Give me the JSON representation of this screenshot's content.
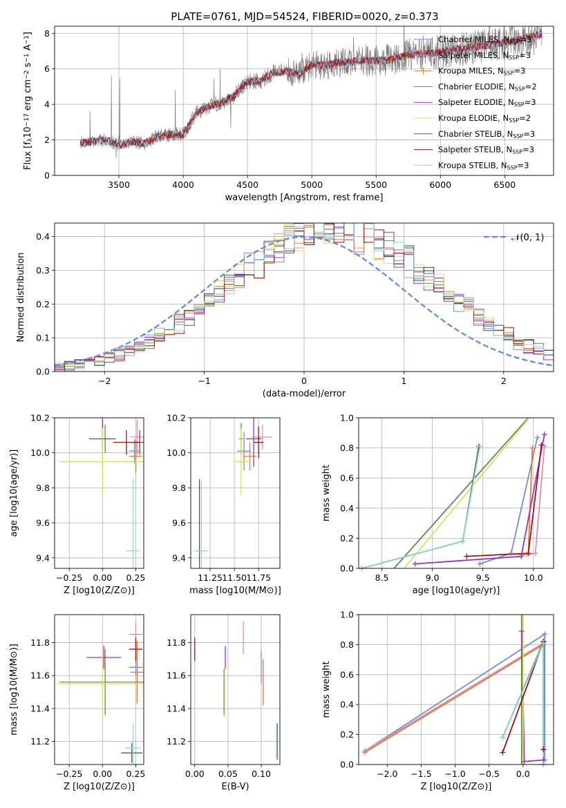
{
  "title": "PLATE=0761, MJD=54524, FIBERID=0020, z=0.373",
  "colors": {
    "c1": "#6a8fd6",
    "c2": "#e07b39",
    "c3": "#5a8a5a",
    "c4": "#9933bb",
    "c5": "#d98fb0",
    "c6": "#d9e060",
    "c7": "#555555",
    "c8": "#a01010",
    "c9": "#8fd3de",
    "data": "#7f7f7f",
    "normal": "#6a8fd6"
  },
  "chart_data": [
    {
      "id": "spectrum",
      "type": "line",
      "title": "PLATE=0761, MJD=54524, FIBERID=0020, z=0.373",
      "xlabel": "wavelength [Angstrom, rest frame]",
      "ylabel_parts": [
        "Flux [f",
        "λ",
        "10",
        "−17",
        " erg cm",
        "−2",
        " s",
        "−1",
        " A",
        "−1",
        "]"
      ],
      "xlim": [
        3000,
        6880
      ],
      "ylim": [
        0,
        8.4
      ],
      "xticks": [
        3500,
        4000,
        4500,
        5000,
        5500,
        6000,
        6500
      ],
      "yticks": [
        0,
        2,
        4,
        6,
        8
      ],
      "continuum": {
        "x": [
          3200,
          3300,
          3400,
          3500,
          3600,
          3700,
          3800,
          3900,
          4000,
          4100,
          4200,
          4300,
          4400,
          4500,
          4600,
          4700,
          4800,
          4900,
          5000,
          5100,
          5200,
          5300,
          5400,
          5500,
          5600,
          5700,
          5800,
          5900,
          6000,
          6100,
          6200,
          6300,
          6400,
          6500,
          6600,
          6700,
          6780
        ],
        "y": [
          1.85,
          1.9,
          2.0,
          1.7,
          1.9,
          1.8,
          2.2,
          2.3,
          2.3,
          3.5,
          3.9,
          4.1,
          4.5,
          5.3,
          5.3,
          5.8,
          5.85,
          5.7,
          6.25,
          6.2,
          6.35,
          6.4,
          6.5,
          6.45,
          6.5,
          6.7,
          6.85,
          6.85,
          6.95,
          7.1,
          7.15,
          7.3,
          7.35,
          7.5,
          7.6,
          7.8,
          7.95
        ]
      },
      "legend_position": "upper-right",
      "legend": [
        {
          "name": "Chabrier MILES, N",
          "sub": "SSP",
          "suffix": "=3",
          "color": "c1",
          "marker": true
        },
        {
          "name": "Salpeter MILES, N",
          "sub": "SSP",
          "suffix": "=3",
          "color": "c5",
          "marker": true
        },
        {
          "name": "Kroupa MILES, N",
          "sub": "SSP",
          "suffix": "=3",
          "color": "c2",
          "marker": true
        },
        {
          "name": "Chabrier ELODIE, N",
          "sub": "SSP",
          "suffix": "=2",
          "color": "c3",
          "marker": false
        },
        {
          "name": "Salpeter ELODIE, N",
          "sub": "SSP",
          "suffix": "=3",
          "color": "c4",
          "marker": false
        },
        {
          "name": "Kroupa ELODIE, N",
          "sub": "SSP",
          "suffix": "=2",
          "color": "c6",
          "marker": false
        },
        {
          "name": "Chabrier STELIB, N",
          "sub": "SSP",
          "suffix": "=3",
          "color": "c7",
          "marker": false
        },
        {
          "name": "Salpeter STELIB, N",
          "sub": "SSP",
          "suffix": "=3",
          "color": "c8",
          "marker": false
        },
        {
          "name": "Kroupa STELIB, N",
          "sub": "SSP",
          "suffix": "=3",
          "color": "c9",
          "marker": false
        }
      ]
    },
    {
      "id": "residuals",
      "type": "histogram",
      "xlabel": "(data-model)/error",
      "ylabel": "Normed distribution",
      "xlim": [
        -2.5,
        2.5
      ],
      "ylim": [
        0,
        0.44
      ],
      "xticks": [
        -2,
        -1,
        0,
        1,
        2
      ],
      "xtick_labels": [
        "−2",
        "−1",
        "0",
        "1",
        "2"
      ],
      "yticks": [
        0.0,
        0.1,
        0.2,
        0.3,
        0.4
      ],
      "ytick_labels": [
        "0.0",
        "0.1",
        "0.2",
        "0.3",
        "0.4"
      ],
      "bin_width": 0.1,
      "series_colors": [
        "c1",
        "c5",
        "c2",
        "c3",
        "c4",
        "c6",
        "c7",
        "c8",
        "c9"
      ],
      "normal_label": "𝒩(0, 1)",
      "legend_position": "upper-right"
    },
    {
      "id": "age-vs-z",
      "type": "errorbar",
      "xlabel": "Z [log10(Z/Z⊙)]",
      "ylabel": "age [log10(age/yr)]",
      "xlim": [
        -0.36,
        0.31
      ],
      "ylim": [
        9.34,
        10.2
      ],
      "xticks": [
        -0.25,
        0.0,
        0.25
      ],
      "xtick_labels": [
        "−0.25",
        "0.00",
        "0.25"
      ],
      "yticks": [
        9.4,
        9.6,
        9.8,
        10.0,
        10.2
      ],
      "ytick_labels": [
        "9.4",
        "9.6",
        "9.8",
        "10.0",
        "10.2"
      ],
      "points": [
        {
          "x": 0.24,
          "xerr": 0.04,
          "y": 10.01,
          "yerr": 0.07,
          "color": "c1"
        },
        {
          "x": 0.26,
          "xerr": 0.05,
          "y": 10.09,
          "yerr": 0.1,
          "color": "c5"
        },
        {
          "x": 0.25,
          "xerr": 0.05,
          "y": 9.98,
          "yerr": 0.09,
          "color": "c2"
        },
        {
          "x": 0.02,
          "xerr": 0.04,
          "y": 10.08,
          "yerr": 0.08,
          "color": "c3"
        },
        {
          "x": 0.0,
          "xerr": 0.1,
          "y": 10.08,
          "yerr": 0.17,
          "color": "c4"
        },
        {
          "x": 0.0,
          "xerr": 0.32,
          "y": 9.95,
          "yerr": 0.19,
          "color": "c6"
        },
        {
          "x": 0.28,
          "xerr": 0.04,
          "y": 10.06,
          "yerr": 0.07,
          "color": "c7"
        },
        {
          "x": 0.18,
          "xerr": 0.1,
          "y": 10.06,
          "yerr": 0.07,
          "color": "c8"
        },
        {
          "x": 0.23,
          "xerr": 0.05,
          "y": 9.44,
          "yerr": 0.41,
          "color": "c9"
        }
      ]
    },
    {
      "id": "age-vs-mass",
      "type": "errorbar",
      "xlabel": "mass [log10(M/M⊙)]",
      "ylabel": "",
      "xlim": [
        11.05,
        11.97
      ],
      "ylim": [
        9.34,
        10.2
      ],
      "xticks": [
        11.25,
        11.5,
        11.75
      ],
      "xtick_labels": [
        "11.25",
        "11.50",
        "11.75"
      ],
      "yticks": [
        9.4,
        9.6,
        9.8,
        10.0,
        10.2
      ],
      "ytick_labels": [
        "9.4",
        "9.6",
        "9.8",
        "10.0",
        "10.2"
      ],
      "points": [
        {
          "x": 11.6,
          "xerr": 0.07,
          "y": 10.01,
          "yerr": 0.11,
          "color": "c1"
        },
        {
          "x": 11.79,
          "xerr": 0.1,
          "y": 10.09,
          "yerr": 0.07,
          "color": "c5"
        },
        {
          "x": 11.66,
          "xerr": 0.07,
          "y": 9.98,
          "yerr": 0.08,
          "color": "c2"
        },
        {
          "x": 11.57,
          "xerr": 0.02,
          "y": 10.08,
          "yerr": 0.09,
          "color": "c3"
        },
        {
          "x": 11.7,
          "xerr": 0.08,
          "y": 10.08,
          "yerr": 0.16,
          "color": "c4"
        },
        {
          "x": 11.57,
          "xerr": 0.08,
          "y": 9.95,
          "yerr": 0.19,
          "color": "c6"
        },
        {
          "x": 11.14,
          "xerr": 0.03,
          "y": 9.44,
          "yerr": 0.41,
          "color": "c7"
        },
        {
          "x": 11.75,
          "xerr": 0.05,
          "y": 10.06,
          "yerr": 0.09,
          "color": "c8"
        },
        {
          "x": 11.16,
          "xerr": 0.07,
          "y": 9.44,
          "yerr": 0.4,
          "color": "c9"
        }
      ]
    },
    {
      "id": "mass-weight-vs-age",
      "type": "line",
      "xlabel": "age [log10(age/yr)]",
      "ylabel": "mass weight",
      "xlim": [
        8.27,
        10.2
      ],
      "ylim": [
        0,
        1
      ],
      "xticks": [
        8.5,
        9.0,
        9.5,
        10.0
      ],
      "xtick_labels": [
        "8.5",
        "9.0",
        "9.5",
        "10.0"
      ],
      "yticks": [
        0.0,
        0.2,
        0.4,
        0.6,
        0.8,
        1.0
      ],
      "ytick_labels": [
        "0.0",
        "0.2",
        "0.4",
        "0.6",
        "0.8",
        "1.0"
      ],
      "series": [
        {
          "color": "c1",
          "marker": true,
          "points": [
            [
              9.47,
              0.03
            ],
            [
              9.78,
              0.1
            ],
            [
              10.04,
              0.87
            ]
          ]
        },
        {
          "color": "c5",
          "marker": true,
          "points": [
            [
              9.93,
              0.09
            ],
            [
              10.02,
              0.1
            ],
            [
              10.11,
              0.81
            ]
          ]
        },
        {
          "color": "c2",
          "marker": true,
          "points": [
            [
              9.88,
              0.09
            ],
            [
              9.95,
              0.1
            ],
            [
              9.99,
              0.8
            ]
          ]
        },
        {
          "color": "c3",
          "marker": false,
          "points": [
            [
              8.62,
              0.0
            ],
            [
              9.95,
              1.0
            ]
          ]
        },
        {
          "color": "c4",
          "marker": true,
          "points": [
            [
              8.83,
              0.03
            ],
            [
              9.88,
              0.08
            ],
            [
              10.11,
              0.89
            ]
          ]
        },
        {
          "color": "c6",
          "marker": false,
          "points": [
            [
              8.72,
              0.0
            ],
            [
              9.96,
              1.0
            ]
          ]
        },
        {
          "color": "c7",
          "marker": true,
          "points": [
            [
              8.3,
              0.0
            ],
            [
              9.3,
              0.18
            ],
            [
              9.46,
              0.81
            ]
          ]
        },
        {
          "color": "c8",
          "marker": true,
          "points": [
            [
              9.34,
              0.08
            ],
            [
              9.95,
              0.1
            ],
            [
              10.08,
              0.82
            ]
          ]
        },
        {
          "color": "c9",
          "marker": true,
          "points": [
            [
              8.3,
              0.0
            ],
            [
              9.3,
              0.18
            ],
            [
              9.47,
              0.81
            ]
          ]
        }
      ]
    },
    {
      "id": "mass-vs-z",
      "type": "errorbar",
      "xlabel": "Z [log10(Z/Z⊙)]",
      "ylabel": "mass [log10(M/M⊙)]",
      "xlim": [
        -0.36,
        0.31
      ],
      "ylim": [
        11.06,
        11.97
      ],
      "xticks": [
        -0.25,
        0.0,
        0.25
      ],
      "xtick_labels": [
        "−0.25",
        "0.00",
        "0.25"
      ],
      "yticks": [
        11.2,
        11.4,
        11.6,
        11.8
      ],
      "ytick_labels": [
        "11.2",
        "11.4",
        "11.6",
        "11.8"
      ],
      "points": [
        {
          "x": 0.25,
          "xerr": 0.05,
          "y": 11.65,
          "yerr": 0.05,
          "color": "c1"
        },
        {
          "x": 0.25,
          "xerr": 0.05,
          "y": 11.85,
          "yerr": 0.07,
          "color": "c5"
        },
        {
          "x": 0.26,
          "xerr": 0.05,
          "y": 11.62,
          "yerr": 0.19,
          "color": "c2"
        },
        {
          "x": 0.02,
          "xerr": 0.34,
          "y": 11.56,
          "yerr": 0.2,
          "color": "c3"
        },
        {
          "x": 0.01,
          "xerr": 0.13,
          "y": 11.71,
          "yerr": 0.07,
          "color": "c4"
        },
        {
          "x": 0.0,
          "xerr": 0.34,
          "y": 11.55,
          "yerr": 0.2,
          "color": "c6"
        },
        {
          "x": 0.22,
          "xerr": 0.08,
          "y": 11.13,
          "yerr": 0.06,
          "color": "c7"
        },
        {
          "x": 0.25,
          "xerr": 0.05,
          "y": 11.76,
          "yerr": 0.07,
          "color": "c8"
        },
        {
          "x": 0.23,
          "xerr": 0.06,
          "y": 11.16,
          "yerr": 0.15,
          "color": "c9"
        }
      ]
    },
    {
      "id": "mass-vs-ebv",
      "type": "errorbar",
      "xlabel": "E(B-V)",
      "ylabel": "",
      "xlim": [
        -0.006,
        0.128
      ],
      "ylim": [
        11.06,
        11.97
      ],
      "xticks": [
        0.0,
        0.05,
        0.1
      ],
      "xtick_labels": [
        "0.00",
        "0.05",
        "0.10"
      ],
      "yticks": [
        11.2,
        11.4,
        11.6,
        11.8
      ],
      "ytick_labels": [
        "11.2",
        "11.4",
        "11.6",
        "11.8"
      ],
      "points": [
        {
          "x": 0.1,
          "xerr": 0.0,
          "y": 11.65,
          "yerr": 0.1,
          "color": "c1"
        },
        {
          "x": 0.073,
          "xerr": 0.0,
          "y": 11.83,
          "yerr": 0.1,
          "color": "c5"
        },
        {
          "x": 0.103,
          "xerr": 0.0,
          "y": 11.56,
          "yerr": 0.14,
          "color": "c2"
        },
        {
          "x": 0.044,
          "xerr": 0.0,
          "y": 11.5,
          "yerr": 0.14,
          "color": "c3"
        },
        {
          "x": 0.046,
          "xerr": 0.0,
          "y": 11.71,
          "yerr": 0.07,
          "color": "c4"
        },
        {
          "x": 0.045,
          "xerr": 0.0,
          "y": 11.5,
          "yerr": 0.15,
          "color": "c6"
        },
        {
          "x": 0.124,
          "xerr": 0.0,
          "y": 11.2,
          "yerr": 0.11,
          "color": "c7"
        },
        {
          "x": 0.0,
          "xerr": 0.0,
          "y": 11.76,
          "yerr": 0.07,
          "color": "c8"
        },
        {
          "x": 0.123,
          "xerr": 0.0,
          "y": 11.2,
          "yerr": 0.11,
          "color": "c9"
        }
      ]
    },
    {
      "id": "mass-weight-vs-z",
      "type": "line",
      "xlabel": "Z [log10(Z/Z⊙)]",
      "ylabel": "mass weight",
      "xlim": [
        -2.42,
        0.45
      ],
      "ylim": [
        0,
        1
      ],
      "xticks": [
        -2.0,
        -1.5,
        -1.0,
        -0.5,
        0.0
      ],
      "xtick_labels": [
        "−2.0",
        "−1.5",
        "−1.0",
        "−0.5",
        "0.0"
      ],
      "yticks": [
        0.0,
        0.2,
        0.4,
        0.6,
        0.8,
        1.0
      ],
      "ytick_labels": [
        "0.0",
        "0.2",
        "0.4",
        "0.6",
        "0.8",
        "1.0"
      ],
      "series": [
        {
          "color": "c1",
          "marker": true,
          "points": [
            [
              -2.33,
              0.09
            ],
            [
              0.32,
              0.87
            ],
            [
              0.32,
              0.03
            ]
          ]
        },
        {
          "color": "c5",
          "marker": true,
          "points": [
            [
              -2.33,
              0.09
            ],
            [
              0.3,
              0.81
            ],
            [
              0.31,
              0.1
            ]
          ]
        },
        {
          "color": "c2",
          "marker": true,
          "points": [
            [
              -2.33,
              0.08
            ],
            [
              0.3,
              0.8
            ],
            [
              0.3,
              0.1
            ]
          ]
        },
        {
          "color": "c3",
          "marker": false,
          "points": [
            [
              -0.02,
              0.0
            ],
            [
              -0.02,
              1.0
            ]
          ]
        },
        {
          "color": "c4",
          "marker": true,
          "points": [
            [
              -0.02,
              0.89
            ],
            [
              0.02,
              0.02
            ],
            [
              0.3,
              0.03
            ]
          ]
        },
        {
          "color": "c6",
          "marker": false,
          "points": [
            [
              0.0,
              0.0
            ],
            [
              0.0,
              1.0
            ]
          ]
        },
        {
          "color": "c7",
          "marker": true,
          "points": [
            [
              0.3,
              0.0
            ],
            [
              0.3,
              0.82
            ],
            [
              -0.3,
              0.18
            ]
          ]
        },
        {
          "color": "c8",
          "marker": true,
          "points": [
            [
              -0.3,
              0.08
            ],
            [
              0.3,
              0.82
            ],
            [
              0.3,
              0.1
            ]
          ]
        },
        {
          "color": "c9",
          "marker": true,
          "points": [
            [
              0.3,
              0.0
            ],
            [
              0.3,
              0.81
            ],
            [
              -0.3,
              0.18
            ]
          ]
        }
      ]
    }
  ]
}
